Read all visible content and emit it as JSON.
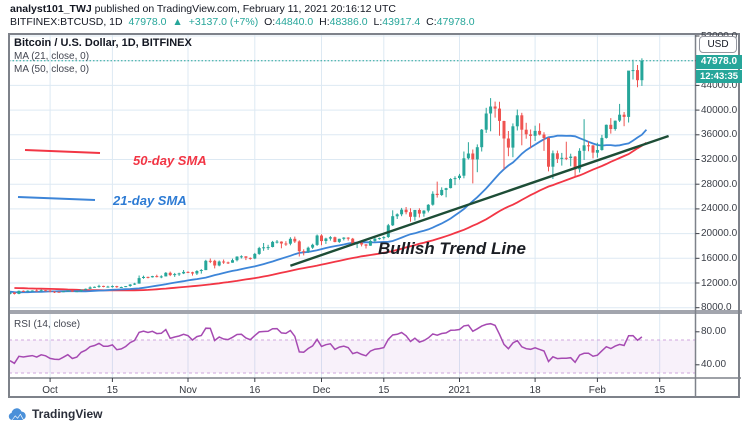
{
  "header": {
    "line1_bold": "analyst101_TWJ",
    "line1_rest": " published on TradingView.com, February 11, 2021 20:16:12 UTC",
    "symbol": "BITFINEX:BTCUSD, 1D",
    "last": "47978.0",
    "arrow": "▲",
    "change": "+3137.0 (+7%)",
    "o_label": "O:",
    "o": "44840.0",
    "h_label": "H:",
    "h": "48386.0",
    "l_label": "L:",
    "l": "43917.4",
    "c_label": "C:",
    "c": "47978.0"
  },
  "legend": {
    "title": "Bitcoin / U.S. Dollar, 1D, BITFINEX",
    "ma21": "MA (21, close, 0)",
    "ma50": "MA (50, close, 0)"
  },
  "annotations": {
    "sma50": "50-day SMA",
    "sma21": "21-day SMA",
    "trend": "Bullish Trend Line"
  },
  "rsi_label": "RSI (14, close)",
  "axis": {
    "currency_button": "USD",
    "price_badge": "47978.0",
    "time_badge": "12:43:35",
    "price_ticks": [
      52000,
      48000,
      44000,
      40000,
      36000,
      32000,
      28000,
      24000,
      20000,
      16000,
      12000,
      8000
    ],
    "rsi_ticks": [
      {
        "label": "80.00",
        "value": 80
      },
      {
        "label": "40.00",
        "value": 40
      }
    ],
    "time_ticks": [
      {
        "label": "Oct",
        "day": 9
      },
      {
        "label": "15",
        "day": 23
      },
      {
        "label": "Nov",
        "day": 40
      },
      {
        "label": "16",
        "day": 55
      },
      {
        "label": "Dec",
        "day": 70
      },
      {
        "label": "15",
        "day": 84
      },
      {
        "label": "2021",
        "day": 101
      },
      {
        "label": "18",
        "day": 118
      },
      {
        "label": "Feb",
        "day": 132
      },
      {
        "label": "15",
        "day": 146
      }
    ]
  },
  "footer": {
    "brand": "TradingView"
  },
  "colors": {
    "up": "#26a69a",
    "down": "#ef5350",
    "ma21": "#3d85d8",
    "ma50": "#f23645",
    "trend": "#1d4d36",
    "rsi": "#a64ab2",
    "rsi_band_fill": "rgba(171,71,188,0.08)",
    "rsi_band_edge": "#cfa6dd",
    "grid": "#dde9f3",
    "frame": "#7e828a",
    "separator": "#a2a5ad",
    "price_line": "#26a69a"
  },
  "chart_data": {
    "type": "candlestick",
    "symbol": "Bitcoin / U.S. Dollar",
    "exchange": "BITFINEX",
    "interval": "1D",
    "title": "BITFINEX:BTCUSD, 1D",
    "current_price": 47978.0,
    "session_countdown": "12:43:35",
    "price_axis": {
      "min": 7600,
      "max": 52400,
      "tick_step": 4000
    },
    "rsi_axis": {
      "min": 24,
      "max": 100,
      "band": [
        30,
        70
      ],
      "period": 14
    },
    "start_date": "2020-09-22",
    "trend_line": {
      "from_day": 63,
      "from_price": 14800,
      "to_day": 148,
      "to_price": 35800
    },
    "warmup_closes": [
      11200,
      11750,
      11780,
      11600,
      11760,
      11680,
      11890,
      11390,
      11560,
      11780,
      11760,
      11850,
      11910,
      12250,
      11990,
      11740,
      11860,
      11650,
      11630,
      11670,
      11650,
      11470,
      11330,
      11520,
      11470,
      11330,
      11530,
      11650,
      11920,
      11390,
      10170,
      10510,
      10170,
      10280,
      10370,
      10130,
      10240,
      10460,
      10330,
      10440,
      10330,
      10670,
      10790,
      10950,
      10940,
      10420,
      10530,
      10670,
      10920
    ],
    "candles": [
      [
        10220,
        10480,
        10140,
        10460
      ],
      [
        10460,
        10520,
        10140,
        10240
      ],
      [
        10240,
        10790,
        10190,
        10740
      ],
      [
        10740,
        10800,
        10560,
        10690
      ],
      [
        10690,
        10810,
        10610,
        10750
      ],
      [
        10750,
        10810,
        10630,
        10790
      ],
      [
        10790,
        11080,
        10620,
        10690
      ],
      [
        10690,
        10950,
        10630,
        10840
      ],
      [
        10840,
        10860,
        10660,
        10780
      ],
      [
        10780,
        10920,
        10470,
        10620
      ],
      [
        10620,
        10670,
        10380,
        10570
      ],
      [
        10570,
        10610,
        10500,
        10550
      ],
      [
        10550,
        10700,
        10520,
        10670
      ],
      [
        10670,
        10800,
        10590,
        10800
      ],
      [
        10800,
        10810,
        10540,
        10600
      ],
      [
        10600,
        10680,
        10550,
        10670
      ],
      [
        10670,
        10950,
        10560,
        10930
      ],
      [
        10930,
        11110,
        10830,
        11060
      ],
      [
        11060,
        11450,
        11050,
        11290
      ],
      [
        11290,
        11430,
        11240,
        11380
      ],
      [
        11380,
        11720,
        11230,
        11530
      ],
      [
        11530,
        11560,
        11300,
        11420
      ],
      [
        11420,
        11550,
        11280,
        11420
      ],
      [
        11420,
        11610,
        11250,
        11500
      ],
      [
        11500,
        11540,
        11220,
        11320
      ],
      [
        11320,
        11410,
        11270,
        11360
      ],
      [
        11360,
        11520,
        11340,
        11500
      ],
      [
        11500,
        11820,
        11390,
        11750
      ],
      [
        11750,
        12040,
        11680,
        11910
      ],
      [
        11910,
        13220,
        11890,
        12800
      ],
      [
        12800,
        13200,
        12690,
        12980
      ],
      [
        12980,
        13030,
        12740,
        12930
      ],
      [
        12930,
        13160,
        12880,
        13120
      ],
      [
        13120,
        13350,
        12900,
        13030
      ],
      [
        13030,
        13240,
        12770,
        13070
      ],
      [
        13070,
        13770,
        13050,
        13650
      ],
      [
        13650,
        13850,
        13120,
        13270
      ],
      [
        13270,
        13630,
        12980,
        13440
      ],
      [
        13440,
        13660,
        13150,
        13560
      ],
      [
        13560,
        14100,
        13440,
        13800
      ],
      [
        13800,
        13890,
        13610,
        13740
      ],
      [
        13740,
        13830,
        13200,
        13550
      ],
      [
        13550,
        14070,
        13290,
        13950
      ],
      [
        13950,
        14250,
        13530,
        14100
      ],
      [
        14100,
        15750,
        14090,
        15600
      ],
      [
        15600,
        15960,
        15230,
        15590
      ],
      [
        15590,
        15750,
        14370,
        14830
      ],
      [
        14830,
        15650,
        14700,
        15480
      ],
      [
        15480,
        15800,
        15100,
        15330
      ],
      [
        15330,
        15460,
        15070,
        15290
      ],
      [
        15290,
        15950,
        15270,
        15700
      ],
      [
        15700,
        16340,
        15490,
        16280
      ],
      [
        16280,
        16480,
        15960,
        16320
      ],
      [
        16320,
        16330,
        15710,
        16070
      ],
      [
        16070,
        16150,
        15780,
        15960
      ],
      [
        15960,
        16880,
        15870,
        16710
      ],
      [
        16710,
        17860,
        16570,
        17650
      ],
      [
        17650,
        18480,
        17210,
        17780
      ],
      [
        17780,
        18180,
        17350,
        17820
      ],
      [
        17820,
        18820,
        17770,
        18650
      ],
      [
        18650,
        18960,
        18390,
        18700
      ],
      [
        18700,
        18750,
        17620,
        18400
      ],
      [
        18400,
        18770,
        18010,
        18370
      ],
      [
        18370,
        19420,
        18110,
        19160
      ],
      [
        19160,
        19510,
        18470,
        18730
      ],
      [
        18730,
        18910,
        16290,
        17150
      ],
      [
        17150,
        17460,
        16470,
        17110
      ],
      [
        17110,
        17890,
        16880,
        17720
      ],
      [
        17720,
        18360,
        17520,
        18180
      ],
      [
        18180,
        19860,
        18010,
        19700
      ],
      [
        19700,
        19910,
        18100,
        18800
      ],
      [
        18800,
        19340,
        18330,
        19200
      ],
      [
        19200,
        19600,
        18860,
        19420
      ],
      [
        19420,
        19520,
        18590,
        18650
      ],
      [
        18650,
        19170,
        18500,
        19150
      ],
      [
        19150,
        19420,
        18900,
        19350
      ],
      [
        19350,
        19420,
        18870,
        19170
      ],
      [
        19170,
        19300,
        18140,
        18320
      ],
      [
        18320,
        18630,
        17650,
        18550
      ],
      [
        18550,
        18560,
        17930,
        18250
      ],
      [
        18250,
        18300,
        17580,
        18040
      ],
      [
        18040,
        18950,
        18020,
        18810
      ],
      [
        18810,
        19400,
        18700,
        19170
      ],
      [
        19170,
        19350,
        19010,
        19270
      ],
      [
        19270,
        19570,
        19050,
        19440
      ],
      [
        19440,
        21570,
        19300,
        21340
      ],
      [
        21340,
        23780,
        21230,
        22810
      ],
      [
        22810,
        23290,
        22370,
        23130
      ],
      [
        23130,
        24170,
        22810,
        23870
      ],
      [
        23870,
        24300,
        23130,
        23470
      ],
      [
        23470,
        24120,
        21930,
        22720
      ],
      [
        22720,
        23830,
        22110,
        23820
      ],
      [
        23820,
        24100,
        22620,
        23240
      ],
      [
        23240,
        23790,
        22740,
        23730
      ],
      [
        23730,
        24780,
        23430,
        24670
      ],
      [
        24670,
        26850,
        24520,
        26440
      ],
      [
        26440,
        28420,
        25830,
        26250
      ],
      [
        26250,
        27500,
        26100,
        27080
      ],
      [
        27080,
        27410,
        25880,
        27360
      ],
      [
        27360,
        28990,
        27320,
        28840
      ],
      [
        28840,
        29300,
        27850,
        28990
      ],
      [
        28990,
        29670,
        28740,
        29370
      ],
      [
        29370,
        33300,
        28950,
        32190
      ],
      [
        32190,
        34800,
        32000,
        32970
      ],
      [
        32970,
        33620,
        28130,
        32010
      ],
      [
        32010,
        34440,
        29950,
        33990
      ],
      [
        33990,
        36940,
        33290,
        36820
      ],
      [
        36820,
        40370,
        36300,
        39450
      ],
      [
        39450,
        41950,
        36570,
        40580
      ],
      [
        40580,
        41380,
        38780,
        40240
      ],
      [
        40240,
        41350,
        35850,
        38240
      ],
      [
        38240,
        38270,
        30420,
        35400
      ],
      [
        35400,
        36620,
        32530,
        33920
      ],
      [
        33920,
        37850,
        32380,
        37370
      ],
      [
        37370,
        40100,
        36700,
        39150
      ],
      [
        39150,
        39570,
        34300,
        36820
      ],
      [
        36820,
        37950,
        35370,
        36070
      ],
      [
        36070,
        36860,
        33850,
        35830
      ],
      [
        35830,
        37470,
        35000,
        36630
      ],
      [
        36630,
        37860,
        35900,
        36050
      ],
      [
        36050,
        36420,
        33400,
        35480
      ],
      [
        35480,
        35580,
        30070,
        30830
      ],
      [
        30830,
        33460,
        28850,
        33000
      ],
      [
        33000,
        33440,
        31430,
        32100
      ],
      [
        32100,
        33070,
        31020,
        32280
      ],
      [
        32280,
        34880,
        31910,
        32250
      ],
      [
        32250,
        32940,
        30900,
        32470
      ],
      [
        32470,
        32570,
        29250,
        30410
      ],
      [
        30410,
        33830,
        29890,
        33410
      ],
      [
        33410,
        38530,
        31920,
        34300
      ],
      [
        34300,
        34930,
        33330,
        34280
      ],
      [
        34280,
        34340,
        32180,
        33110
      ],
      [
        33110,
        34720,
        32300,
        33540
      ],
      [
        33540,
        35980,
        33420,
        35500
      ],
      [
        35500,
        37660,
        35380,
        37620
      ],
      [
        37620,
        38710,
        36190,
        36940
      ],
      [
        36940,
        38310,
        36670,
        38290
      ],
      [
        38290,
        41000,
        38080,
        39250
      ],
      [
        39250,
        39700,
        37390,
        38900
      ],
      [
        38900,
        46200,
        37990,
        46400
      ],
      [
        46400,
        48150,
        44960,
        46480
      ],
      [
        46480,
        47310,
        43690,
        44840
      ],
      [
        44840,
        48386,
        43917,
        47978
      ]
    ],
    "indicators": [
      {
        "name": "MA",
        "period": 21,
        "source": "close",
        "color_key": "ma21"
      },
      {
        "name": "MA",
        "period": 50,
        "source": "close",
        "color_key": "ma50"
      },
      {
        "name": "RSI",
        "period": 14,
        "source": "close",
        "color_key": "rsi"
      }
    ]
  }
}
